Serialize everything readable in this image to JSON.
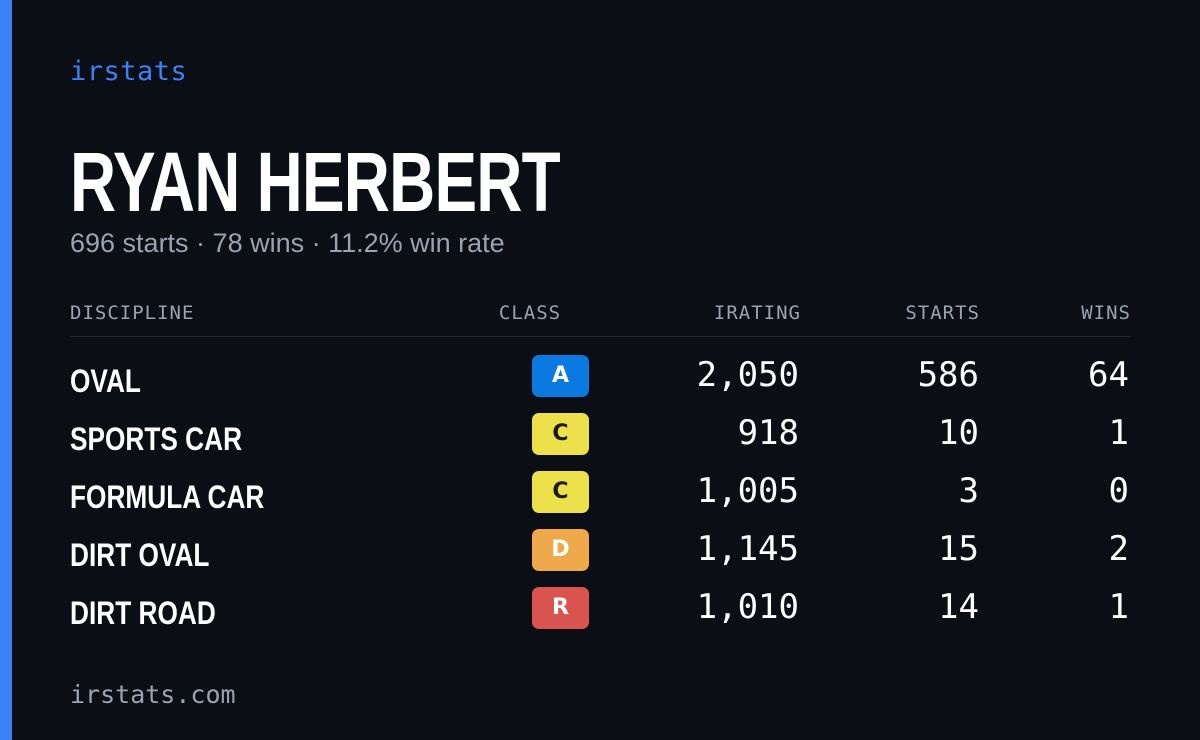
{
  "brand": "irstats",
  "driver": {
    "name": "RYAN HERBERT",
    "summary": "696 starts · 78 wins · 11.2% win rate"
  },
  "table": {
    "headers": {
      "discipline": "DISCIPLINE",
      "class": "CLASS",
      "irating": "IRATING",
      "starts": "STARTS",
      "wins": "WINS"
    },
    "rows": [
      {
        "discipline": "OVAL",
        "class": "A",
        "irating": "2,050",
        "starts": "586",
        "wins": "64"
      },
      {
        "discipline": "SPORTS CAR",
        "class": "C",
        "irating": "918",
        "starts": "10",
        "wins": "1"
      },
      {
        "discipline": "FORMULA CAR",
        "class": "C",
        "irating": "1,005",
        "starts": "3",
        "wins": "0"
      },
      {
        "discipline": "DIRT OVAL",
        "class": "D",
        "irating": "1,145",
        "starts": "15",
        "wins": "2"
      },
      {
        "discipline": "DIRT ROAD",
        "class": "R",
        "irating": "1,010",
        "starts": "14",
        "wins": "1"
      }
    ]
  },
  "class_colors": {
    "A": {
      "bg": "#0b7ae0",
      "fg": "#ffffff"
    },
    "C": {
      "bg": "#ece14a",
      "fg": "#1a1a1a"
    },
    "D": {
      "bg": "#efa94a",
      "fg": "#ffffff"
    },
    "R": {
      "bg": "#d9534f",
      "fg": "#ffffff"
    }
  },
  "colors": {
    "accent": "#3b82f6",
    "background": "#0b0e14",
    "muted_text": "#9aa3b2"
  },
  "footer": {
    "domain": "irstats.com"
  }
}
